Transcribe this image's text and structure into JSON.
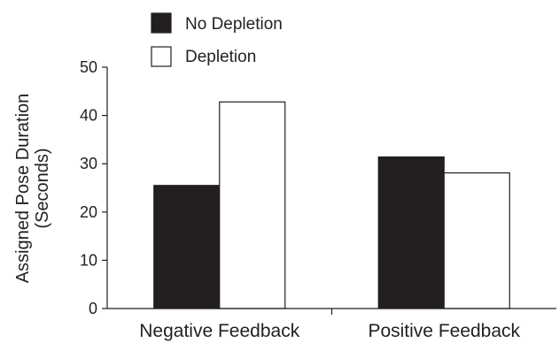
{
  "chart_data": {
    "type": "bar",
    "title": "",
    "xlabel": "",
    "ylabel": [
      "Assigned Pose Duration",
      "(Seconds)"
    ],
    "ylim": [
      0,
      50
    ],
    "yticks": [
      0,
      10,
      20,
      30,
      40,
      50
    ],
    "categories": [
      "Negative Feedback",
      "Positive Feedback"
    ],
    "series": [
      {
        "name": "No Depletion",
        "values": [
          25.5,
          31.4
        ],
        "color": "#231f20"
      },
      {
        "name": "Depletion",
        "values": [
          42.8,
          28.1
        ],
        "color": "#ffffff"
      }
    ],
    "legend_position": "top-left",
    "grid": false
  }
}
